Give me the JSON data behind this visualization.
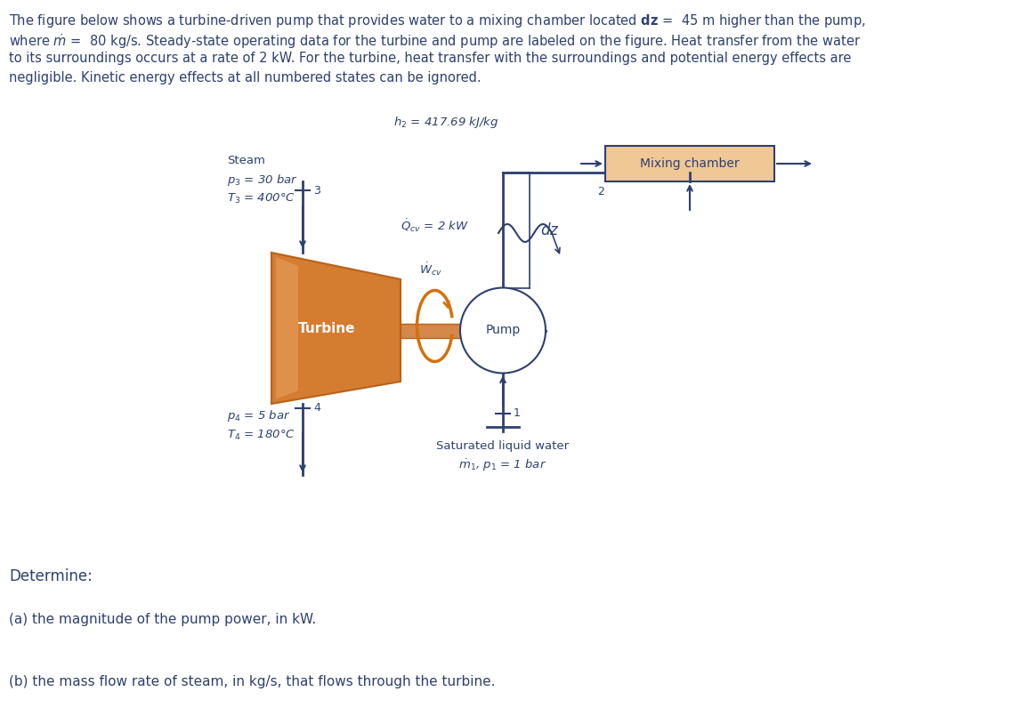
{
  "bg_color": "#ffffff",
  "text_color": "#2e4070",
  "orange_dark": "#b8621a",
  "orange_fill": "#d47c30",
  "orange_light": "#e8a060",
  "box_fill": "#f0c896",
  "shaft_color": "#d4884a",
  "wcv_color": "#d4700a",
  "h2_label": "$h_2$ = 417.69 kJ/kg",
  "mixing_label": "Mixing chamber",
  "qcv_label": "$\\dot{Q}_{cv}$ = 2 kW",
  "dz_label": "$dz$",
  "steam_text": "Steam",
  "p3_label": "$p_3$ = 30 bar",
  "T3_label": "$T_3$ = 400°C",
  "turbine_label": "Turbine",
  "pump_label": "Pump",
  "wcv_label": "$\\dot{W}_{cv}$",
  "p4_label": "$p_4$ = 5 bar",
  "T4_label": "$T_4$ = 180°C",
  "sat_label": "Saturated liquid water",
  "m1p1_label": "$\\dot{m}_1$, $p_1$ = 1 bar",
  "state2": "2",
  "state3": "3",
  "state4": "4",
  "state1": "1",
  "determine_text": "Determine:",
  "part_a": "(a) the magnitude of the pump power, in kW.",
  "part_b": "(b) the mass flow rate of steam, in kg/s, that flows through the turbine."
}
